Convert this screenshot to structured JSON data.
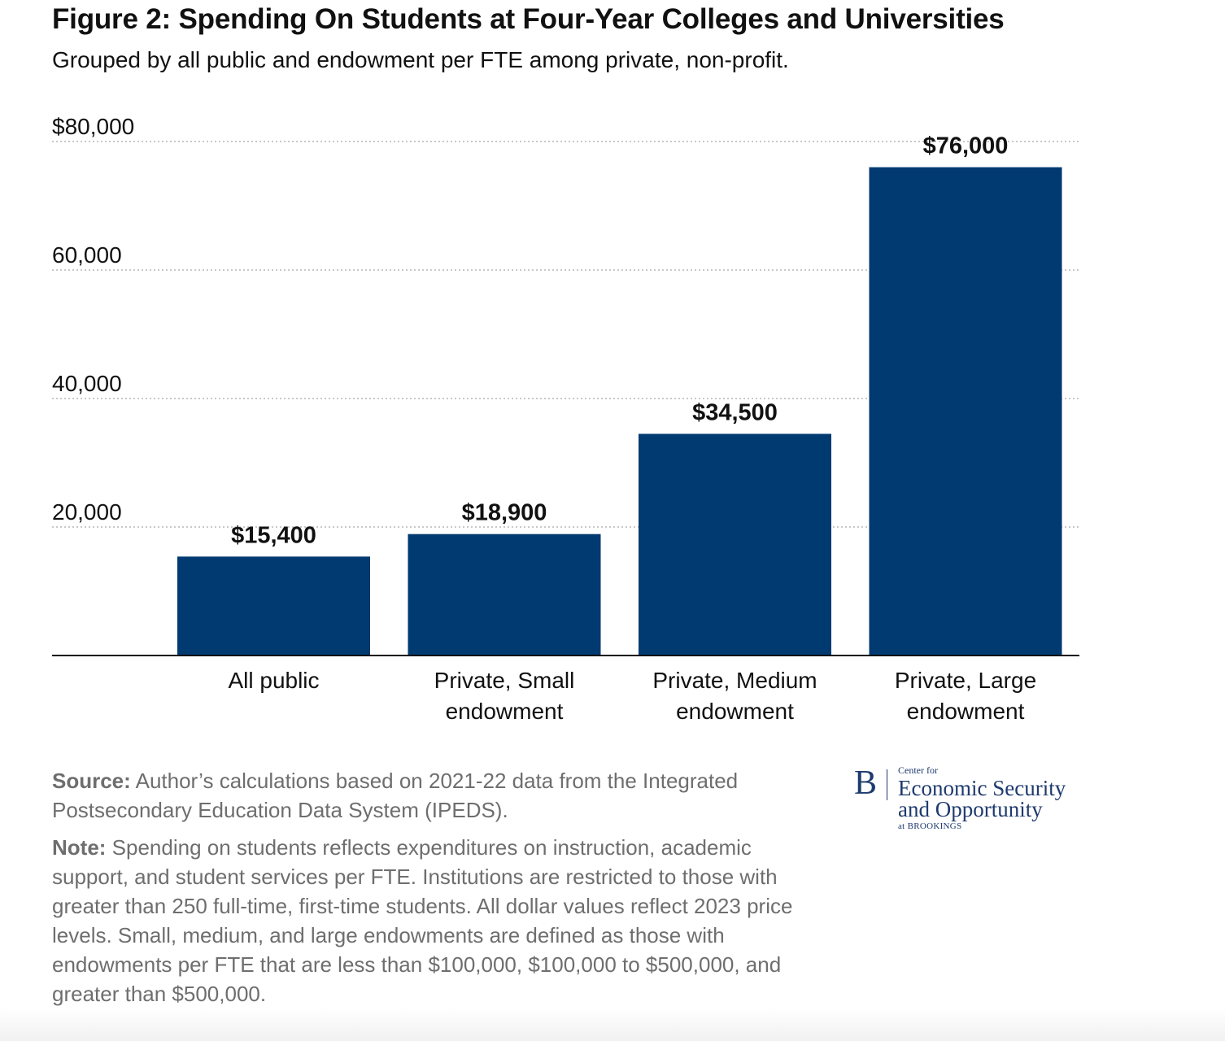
{
  "header": {
    "title": "Figure 2: Spending On Students at Four-Year Colleges and Universities",
    "subtitle": "Grouped by all public and endowment per FTE among private, non-profit."
  },
  "chart_data": {
    "type": "bar",
    "categories": [
      [
        "All public"
      ],
      [
        "Private, Small",
        "endowment"
      ],
      [
        "Private, Medium",
        "endowment"
      ],
      [
        "Private, Large",
        "endowment"
      ]
    ],
    "values": [
      15400,
      18900,
      34500,
      76000
    ],
    "data_labels": [
      "$15,400",
      "$18,900",
      "$34,500",
      "$76,000"
    ],
    "yticks": [
      20000,
      40000,
      60000,
      80000
    ],
    "ytick_labels": [
      "20,000",
      "40,000",
      "60,000",
      "$80,000"
    ],
    "ylim": [
      0,
      80000
    ],
    "bar_color": "#003a70",
    "grid": "dotted-horizontal"
  },
  "notes": {
    "source_label": "Source:",
    "source_text": " Author’s calculations based on 2021-22 data from the Integrated Postsecondary Education Data System (IPEDS).",
    "note_label": "Note:",
    "note_text": " Spending on students reflects expenditures on instruction, academic support, and student services per FTE. Institutions are restricted to those with greater than 250 full-time, first-time students. All dollar values reflect 2023 price levels. Small, medium, and large endowments are defined as those with endowments per FTE that are less than $100,000, $100,000 to $500,000, and greater than $500,000."
  },
  "logo": {
    "letter": "B",
    "small": "Center for",
    "line1": "Economic Security",
    "line2": "and Opportunity",
    "at": "at BROOKINGS"
  }
}
